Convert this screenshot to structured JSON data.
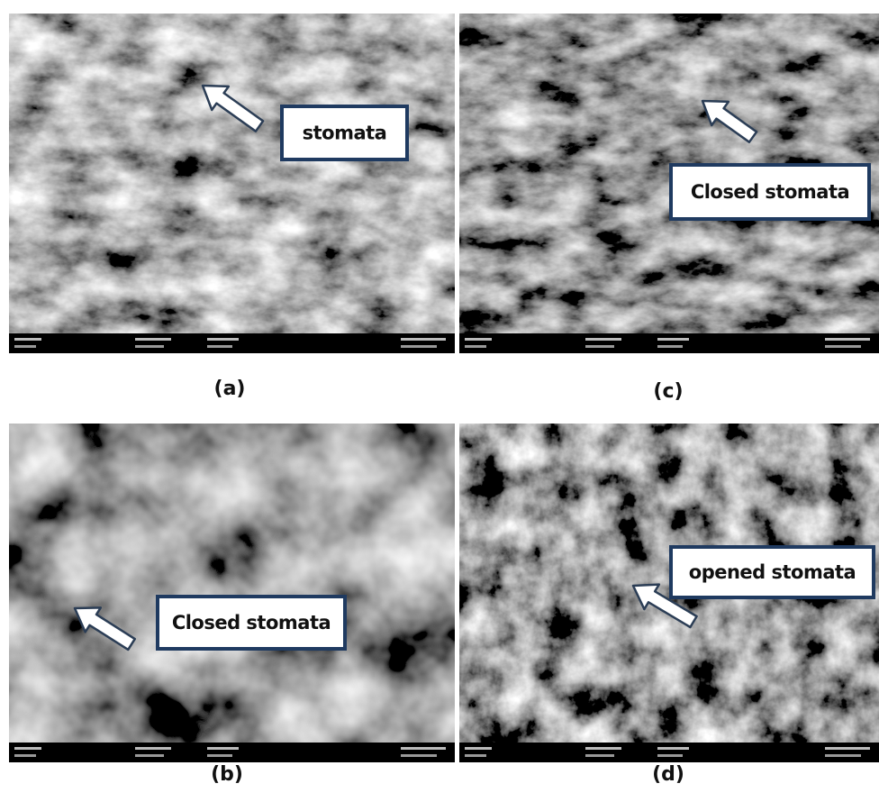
{
  "panels": [
    {
      "caption": "(a)",
      "label": "stomata"
    },
    {
      "caption": "(c)",
      "label": "Closed stomata"
    },
    {
      "caption": "(b)",
      "label": "Closed stomata"
    },
    {
      "caption": "(d)",
      "label": "opened stomata"
    }
  ]
}
